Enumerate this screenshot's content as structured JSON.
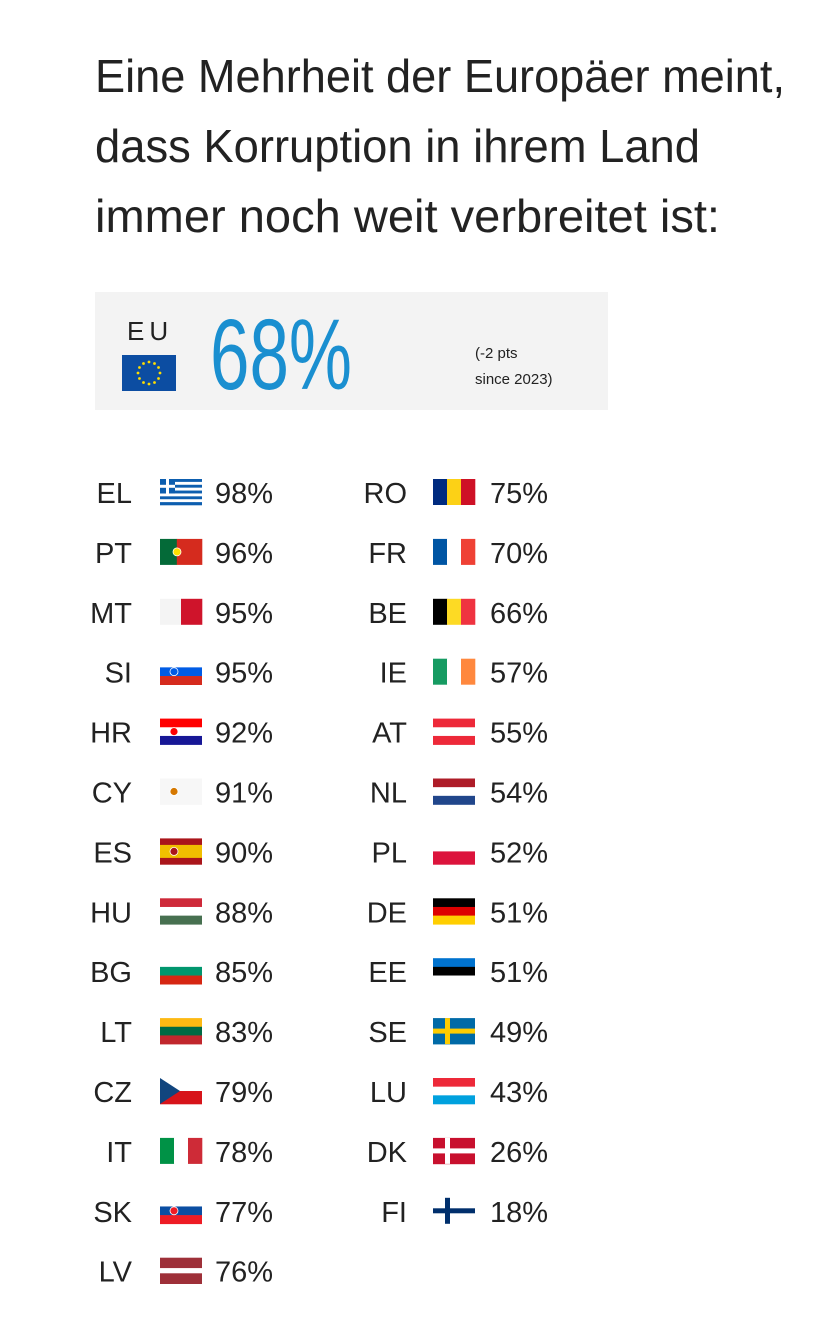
{
  "title": [
    "Eine Mehrheit der Europäer meint,",
    "dass Korruption in ihrem Land",
    "immer noch weit verbreitet ist:"
  ],
  "eu": {
    "label": "EU",
    "value": "68%",
    "note": [
      "(-2 pts",
      "since 2023)"
    ]
  },
  "columns": [
    [
      {
        "code": "EL",
        "value": "98%"
      },
      {
        "code": "PT",
        "value": "96%"
      },
      {
        "code": "MT",
        "value": "95%"
      },
      {
        "code": "SI",
        "value": "95%"
      },
      {
        "code": "HR",
        "value": "92%"
      },
      {
        "code": "CY",
        "value": "91%"
      },
      {
        "code": "ES",
        "value": "90%"
      },
      {
        "code": "HU",
        "value": "88%"
      },
      {
        "code": "BG",
        "value": "85%"
      },
      {
        "code": "LT",
        "value": "83%"
      },
      {
        "code": "CZ",
        "value": "79%"
      },
      {
        "code": "IT",
        "value": "78%"
      },
      {
        "code": "SK",
        "value": "77%"
      },
      {
        "code": "LV",
        "value": "76%"
      }
    ],
    [
      {
        "code": "RO",
        "value": "75%"
      },
      {
        "code": "FR",
        "value": "70%"
      },
      {
        "code": "BE",
        "value": "66%"
      },
      {
        "code": "IE",
        "value": "57%"
      },
      {
        "code": "AT",
        "value": "55%"
      },
      {
        "code": "NL",
        "value": "54%"
      },
      {
        "code": "PL",
        "value": "52%"
      },
      {
        "code": "DE",
        "value": "51%"
      },
      {
        "code": "EE",
        "value": "51%"
      },
      {
        "code": "SE",
        "value": "49%"
      },
      {
        "code": "LU",
        "value": "43%"
      },
      {
        "code": "DK",
        "value": "26%"
      },
      {
        "code": "FI",
        "value": "18%"
      }
    ]
  ]
}
